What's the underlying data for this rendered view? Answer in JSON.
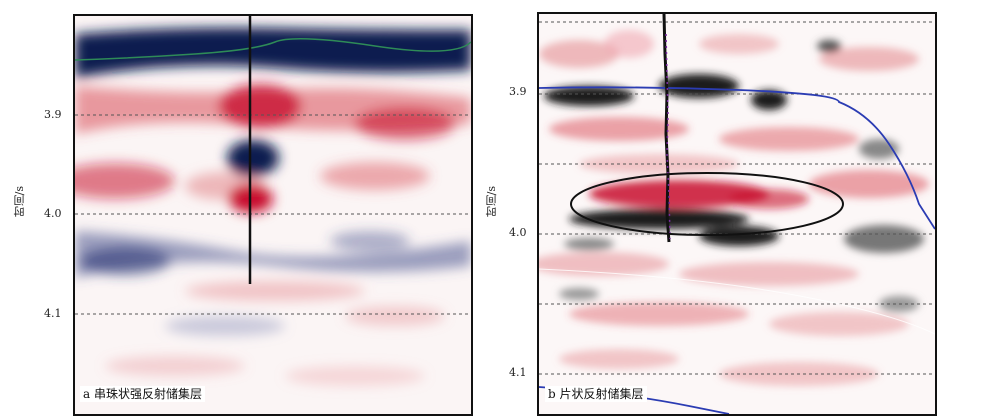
{
  "panel_a": {
    "caption": "a 串珠状强反射储集层",
    "y_axis_label": "时间/s",
    "ticks": [
      "3.9",
      "4.0",
      "4.1"
    ]
  },
  "panel_b": {
    "caption": "b 片状反射储集层",
    "y_axis_label": "时间/s",
    "ticks": [
      "3.9",
      "4.0",
      "4.1"
    ]
  },
  "colors": {
    "positive_amplitude": "#c8102e",
    "negative_amplitude": "#0f1a4f",
    "grayscale_trough": "#1a1a1a",
    "horizon_green": "#2e8b57",
    "horizon_blue": "#2b3cb3",
    "well_track": "#111111",
    "well_track_points": "#7a2aa0",
    "ellipse_outline": "#111111"
  }
}
